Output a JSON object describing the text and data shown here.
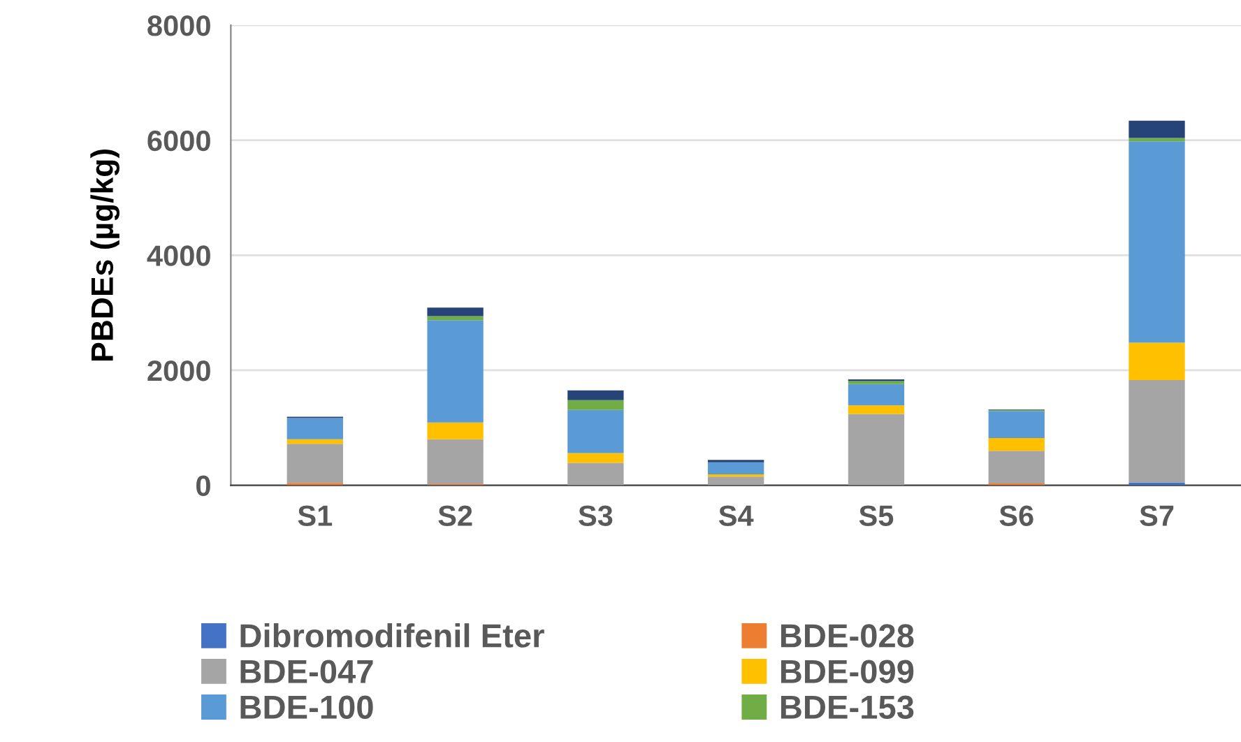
{
  "chart_data": {
    "type": "bar",
    "stacked": true,
    "ylabel": "PBDEs (µg/kg)",
    "categories": [
      "S1",
      "S2",
      "S3",
      "S4",
      "S5",
      "S6",
      "S7"
    ],
    "series": [
      {
        "name": "Dibromodifenil Eter",
        "color": "#4472c4",
        "values": [
          0,
          0,
          0,
          0,
          0,
          0,
          50
        ]
      },
      {
        "name": "BDE-028",
        "color": "#ed7d31",
        "values": [
          40,
          20,
          0,
          0,
          0,
          30,
          0
        ]
      },
      {
        "name": "BDE-047",
        "color": "#a5a5a5",
        "values": [
          680,
          780,
          390,
          150,
          1240,
          570,
          1780
        ]
      },
      {
        "name": "BDE-099",
        "color": "#ffc000",
        "values": [
          80,
          290,
          170,
          40,
          150,
          220,
          650
        ]
      },
      {
        "name": "BDE-100",
        "color": "#5b9bd5",
        "values": [
          370,
          1780,
          750,
          210,
          370,
          470,
          3500
        ]
      },
      {
        "name": "BDE-153",
        "color": "#70ad47",
        "values": [
          0,
          70,
          170,
          0,
          50,
          20,
          60
        ]
      },
      {
        "color": "#264478",
        "values": [
          20,
          150,
          170,
          40,
          30,
          10,
          300
        ]
      }
    ],
    "ylim": [
      0,
      8000
    ],
    "yticks": [
      0,
      2000,
      4000,
      6000,
      8000
    ],
    "grid": "y",
    "legend": "bottom"
  }
}
